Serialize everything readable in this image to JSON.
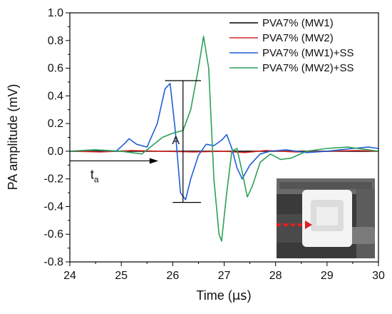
{
  "chart_data": {
    "type": "line",
    "title": "",
    "xlabel_prefix": "Time (",
    "xlabel_unit": "μs",
    "xlabel_suffix": ")",
    "ylabel": "PA amplitude (mV)",
    "xlim": [
      24,
      30
    ],
    "ylim": [
      -0.8,
      1.0
    ],
    "x_ticks": [
      "24",
      "25",
      "26",
      "27",
      "28",
      "29",
      "30"
    ],
    "y_ticks": [
      "-0.8",
      "-0.6",
      "-0.4",
      "-0.2",
      "0.0",
      "0.2",
      "0.4",
      "0.6",
      "0.8",
      "1.0"
    ],
    "legend_position": "top-right",
    "series": [
      {
        "name": "PVA7% (MW1)",
        "color": "#000000",
        "x": [
          24,
          25,
          26,
          27,
          28,
          29,
          30
        ],
        "y": [
          0,
          0,
          0,
          0,
          0,
          0,
          0
        ]
      },
      {
        "name": "PVA7% (MW2)",
        "color": "#d62728",
        "x": [
          24,
          24.6,
          25.2,
          25.8,
          26.4,
          27.0,
          27.4,
          27.8,
          28.4,
          29.0,
          29.6,
          30
        ],
        "y": [
          0.0,
          -0.005,
          0.005,
          0.0,
          -0.005,
          0.0,
          -0.01,
          0.005,
          -0.005,
          0.0,
          0.005,
          0.0
        ]
      },
      {
        "name": "PVA7% (MW1)+SS",
        "color": "#1f5fd6",
        "x": [
          24,
          24.5,
          24.9,
          25.05,
          25.15,
          25.3,
          25.5,
          25.7,
          25.85,
          25.95,
          26.05,
          26.15,
          26.25,
          26.35,
          26.5,
          26.65,
          26.8,
          26.95,
          27.05,
          27.15,
          27.25,
          27.35,
          27.5,
          27.7,
          27.9,
          28.2,
          28.6,
          29.0,
          29.5,
          29.8,
          30
        ],
        "y": [
          0.0,
          0.01,
          0.0,
          0.05,
          0.09,
          0.05,
          0.03,
          0.2,
          0.45,
          0.49,
          0.15,
          -0.3,
          -0.35,
          -0.2,
          -0.03,
          0.05,
          0.04,
          0.08,
          0.12,
          0.02,
          -0.12,
          -0.2,
          -0.1,
          -0.02,
          0.0,
          0.01,
          -0.01,
          0.0,
          0.02,
          0.03,
          0.02
        ]
      },
      {
        "name": "PVA7% (MW2)+SS",
        "color": "#2ca05a",
        "x": [
          24,
          24.5,
          25.0,
          25.4,
          25.6,
          25.8,
          26.0,
          26.2,
          26.35,
          26.5,
          26.6,
          26.7,
          26.8,
          26.9,
          26.95,
          27.05,
          27.15,
          27.25,
          27.35,
          27.45,
          27.55,
          27.7,
          27.9,
          28.1,
          28.3,
          28.6,
          29.0,
          29.4,
          29.8,
          30
        ],
        "y": [
          0.0,
          0.01,
          0.0,
          -0.02,
          0.04,
          0.1,
          0.13,
          0.15,
          0.3,
          0.6,
          0.83,
          0.6,
          -0.2,
          -0.6,
          -0.65,
          -0.3,
          0.0,
          0.02,
          -0.15,
          -0.33,
          -0.25,
          -0.08,
          -0.02,
          -0.06,
          -0.05,
          0.0,
          0.02,
          0.03,
          0.01,
          0.0
        ]
      }
    ],
    "annotations": {
      "amplitude_label": "A",
      "delay_label": "t",
      "delay_subscript": "a"
    }
  }
}
